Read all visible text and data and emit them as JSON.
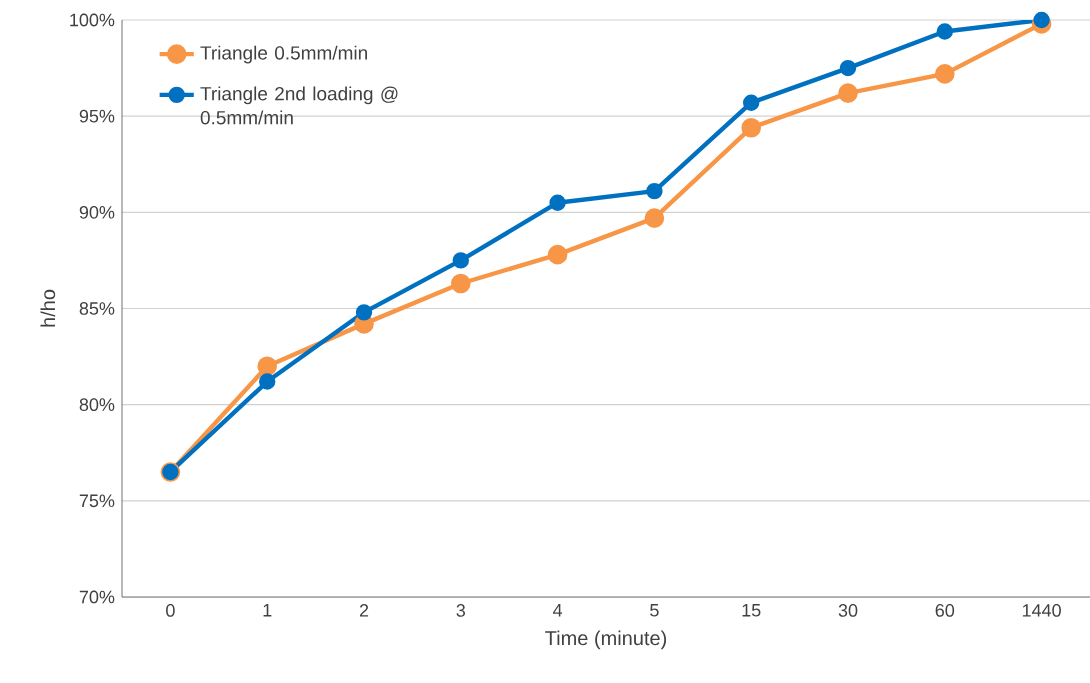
{
  "chart_data": {
    "type": "line",
    "xlabel": "Time (minute)",
    "ylabel": "h/ho",
    "categories": [
      "0",
      "1",
      "2",
      "3",
      "4",
      "5",
      "15",
      "30",
      "60",
      "1440"
    ],
    "series": [
      {
        "name": "Triangle 0.5mm/min",
        "color": "#f79646",
        "values": [
          76.5,
          82.0,
          84.2,
          86.3,
          87.8,
          89.7,
          94.4,
          96.2,
          97.2,
          99.8
        ]
      },
      {
        "name": "Triangle 2nd loading @ 0.5mm/min",
        "color": "#0070c0",
        "values": [
          76.5,
          81.2,
          84.8,
          87.5,
          90.5,
          91.1,
          95.7,
          97.5,
          99.4,
          100.0
        ]
      }
    ],
    "ylim": [
      70,
      100
    ],
    "yticks": [
      {
        "value": 70,
        "label": "70%"
      },
      {
        "value": 75,
        "label": "75%"
      },
      {
        "value": 80,
        "label": "80%"
      },
      {
        "value": 85,
        "label": "85%"
      },
      {
        "value": 90,
        "label": "90%"
      },
      {
        "value": 95,
        "label": "95%"
      },
      {
        "value": 100,
        "label": "100%"
      }
    ],
    "grid": "y",
    "legend": "top left",
    "marker": "circle",
    "line_style": "solid"
  }
}
